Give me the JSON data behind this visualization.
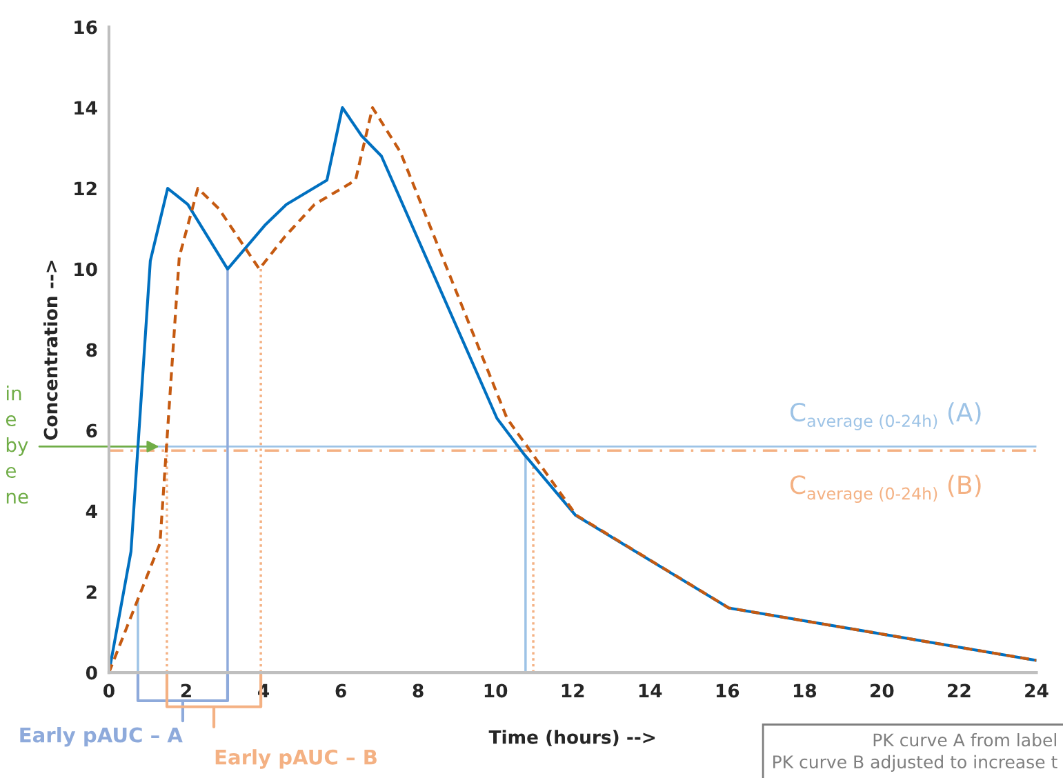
{
  "chart_data": {
    "type": "line",
    "xlabel": "Time (hours) -->",
    "ylabel": "Concentration -->",
    "xlim": [
      0,
      24
    ],
    "xticks": [
      0,
      2,
      4,
      6,
      8,
      10,
      12,
      14,
      16,
      18,
      20,
      22,
      24
    ],
    "ylim": [
      0,
      16
    ],
    "yticks": [
      0,
      2,
      4,
      6,
      8,
      10,
      12,
      14,
      16
    ],
    "grid": false,
    "legend": false,
    "marker": "none",
    "series": [
      {
        "color": "#0070c0",
        "line_style": "solid",
        "x": [
          0,
          0.57,
          1.07,
          1.52,
          2.04,
          3.07,
          4.05,
          4.59,
          5.64,
          6.04,
          6.54,
          7.05,
          10.04,
          10.75,
          12.07,
          16.04,
          24
        ],
        "values": [
          0,
          3.0,
          10.2,
          12.0,
          11.6,
          10.0,
          11.1,
          11.6,
          12.2,
          14.0,
          13.3,
          12.8,
          6.3,
          5.4,
          3.9,
          1.6,
          0.3
        ]
      },
      {
        "color": "#c55a11",
        "line_style": "dashed",
        "x": [
          0,
          1.32,
          1.82,
          2.3,
          2.84,
          3.89,
          4.55,
          5.32,
          6.38,
          6.82,
          7.54,
          10.3,
          12.09,
          16.04,
          24
        ],
        "values": [
          0,
          3.2,
          10.3,
          12.0,
          11.5,
          10.0,
          10.8,
          11.6,
          12.2,
          14.0,
          12.9,
          6.3,
          3.9,
          1.6,
          0.3
        ]
      }
    ],
    "ref_lines": [
      {
        "axis": "y",
        "value": 5.6,
        "label": "C$_{average (0-24h)}$ (A)",
        "color": "#9dc3e6",
        "line_style": "solid"
      },
      {
        "axis": "y",
        "value": 5.5,
        "label": "C$_{average (0-24h)}$ (B)",
        "color": "#f4b183",
        "line_style": "dashdot"
      },
      {
        "axis": "x",
        "value": 0.75,
        "color": "#9dc3e6",
        "line_style": "solid"
      },
      {
        "axis": "x",
        "value": 3.07,
        "color": "#8eaadb",
        "line_style": "solid"
      },
      {
        "axis": "x",
        "value": 10.78,
        "color": "#9dc3e6",
        "line_style": "solid"
      },
      {
        "axis": "x",
        "value": 1.5,
        "color": "#f4b183",
        "line_style": "dotted"
      },
      {
        "axis": "x",
        "value": 3.93,
        "color": "#f4b183",
        "line_style": "dotted"
      },
      {
        "axis": "x",
        "value": 10.98,
        "color": "#f4b183",
        "line_style": "dotted"
      }
    ],
    "annotations": [
      "Early pAUC – A",
      "Early pAUC – B",
      {
        "text": "in\ne\nby\ne\nne",
        "x": 1.3,
        "y": 5.6
      },
      "PK curve A from label\nPK curve B adjusted to increase t"
    ]
  }
}
